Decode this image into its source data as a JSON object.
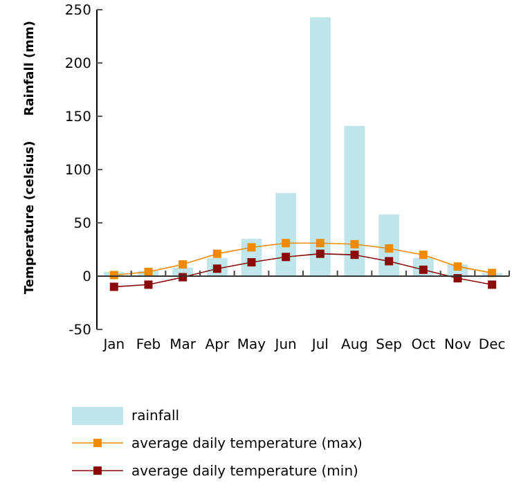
{
  "chart_data": {
    "type": "bar",
    "ylabel": "Rainfall (mm)",
    "y2label": "Temperature (celsius)",
    "categories": [
      "Jan",
      "Feb",
      "Mar",
      "Apr",
      "May",
      "Jun",
      "Jul",
      "Aug",
      "Sep",
      "Oct",
      "Nov",
      "Dec"
    ],
    "series": [
      {
        "name": "rainfall",
        "color": "#c0e6ec",
        "values": [
          4,
          5,
          8,
          17,
          35,
          78,
          243,
          141,
          58,
          17,
          11,
          3
        ]
      },
      {
        "name": "average daily temperature (max)",
        "type": "line",
        "color": "#f08a00",
        "values": [
          1,
          4,
          11,
          21,
          27,
          31,
          31,
          30,
          26,
          20,
          9,
          3
        ]
      },
      {
        "name": "average daily temperature (min)",
        "type": "line",
        "color": "#8b0a0a",
        "values": [
          -10,
          -8,
          -1,
          7,
          13,
          18,
          21,
          20,
          14,
          6,
          -2,
          -8
        ]
      }
    ],
    "ylim": [
      -50,
      250
    ],
    "yticks": [
      -50,
      0,
      50,
      100,
      150,
      200,
      250
    ],
    "marker": "square",
    "legend": "bottom"
  }
}
